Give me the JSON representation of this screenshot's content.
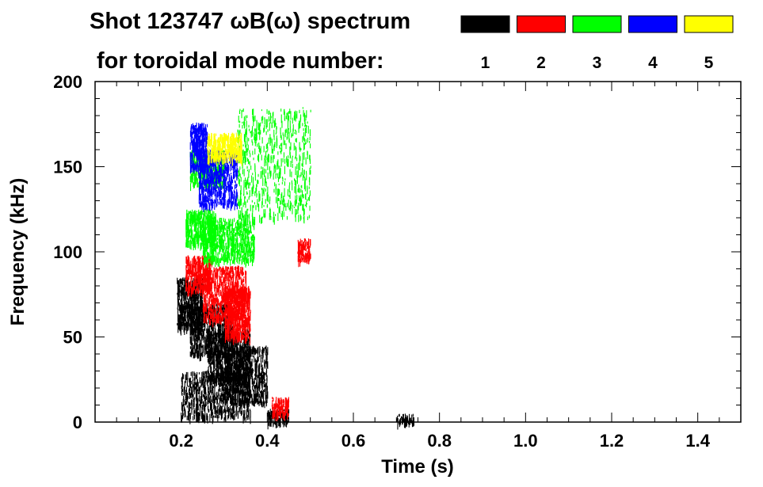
{
  "chart_data": {
    "type": "scatter",
    "title": "Shot 123747 ωB(ω) spectrum",
    "subtitle": "for toroidal mode number:",
    "xlabel": "Time (s)",
    "ylabel": "Frequency (kHz)",
    "xlim": [
      0.0,
      1.5
    ],
    "ylim": [
      0,
      200
    ],
    "x_ticks": [
      0.2,
      0.4,
      0.6,
      0.8,
      1.0,
      1.2,
      1.4
    ],
    "x_tick_labels": [
      "0.2",
      "0.4",
      "0.6",
      "0.8",
      "1.0",
      "1.2",
      "1.4"
    ],
    "y_ticks": [
      0,
      50,
      100,
      150,
      200
    ],
    "y_tick_labels": [
      "0",
      "50",
      "100",
      "150",
      "200"
    ],
    "grid": false,
    "legend_placement": "top-right",
    "series": [
      {
        "name": "1",
        "color": "#000000",
        "regions": [
          {
            "t": [
              0.19,
              0.25
            ],
            "f": [
              55,
              85
            ]
          },
          {
            "t": [
              0.22,
              0.32
            ],
            "f": [
              40,
              70
            ]
          },
          {
            "t": [
              0.26,
              0.36
            ],
            "f": [
              25,
              55
            ]
          },
          {
            "t": [
              0.3,
              0.4
            ],
            "f": [
              12,
              45
            ]
          },
          {
            "t": [
              0.2,
              0.36
            ],
            "f": [
              3,
              30
            ]
          },
          {
            "t": [
              0.4,
              0.45
            ],
            "f": [
              0,
              8
            ]
          },
          {
            "t": [
              0.7,
              0.74
            ],
            "f": [
              0,
              5
            ]
          }
        ]
      },
      {
        "name": "2",
        "color": "#ff0000",
        "regions": [
          {
            "t": [
              0.21,
              0.27
            ],
            "f": [
              78,
              98
            ]
          },
          {
            "t": [
              0.25,
              0.35
            ],
            "f": [
              60,
              92
            ]
          },
          {
            "t": [
              0.3,
              0.36
            ],
            "f": [
              50,
              80
            ]
          },
          {
            "t": [
              0.47,
              0.5
            ],
            "f": [
              95,
              108
            ]
          },
          {
            "t": [
              0.41,
              0.45
            ],
            "f": [
              5,
              15
            ]
          }
        ]
      },
      {
        "name": "3",
        "color": "#00ff00",
        "regions": [
          {
            "t": [
              0.21,
              0.28
            ],
            "f": [
              105,
              125
            ]
          },
          {
            "t": [
              0.25,
              0.37
            ],
            "f": [
              95,
              120
            ]
          },
          {
            "t": [
              0.22,
              0.3
            ],
            "f": [
              140,
              160
            ]
          },
          {
            "t": [
              0.33,
              0.5
            ],
            "f": [
              120,
              185
            ]
          }
        ]
      },
      {
        "name": "4",
        "color": "#0000ff",
        "regions": [
          {
            "t": [
              0.22,
              0.26
            ],
            "f": [
              150,
              176
            ]
          },
          {
            "t": [
              0.24,
              0.33
            ],
            "f": [
              128,
              160
            ]
          }
        ]
      },
      {
        "name": "5",
        "color": "#ffff00",
        "regions": [
          {
            "t": [
              0.26,
              0.34
            ],
            "f": [
              155,
              170
            ]
          }
        ]
      }
    ]
  }
}
